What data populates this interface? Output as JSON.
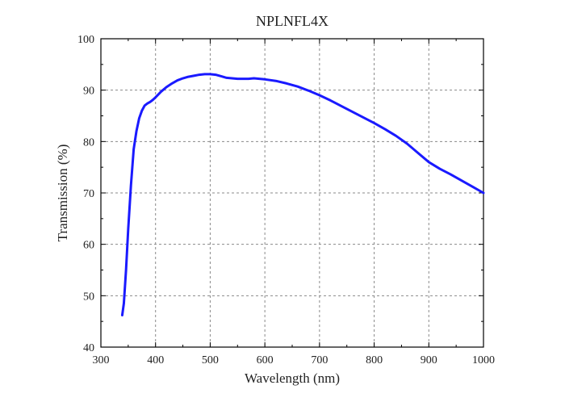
{
  "chart_data": {
    "type": "line",
    "title": "NPLNFL4X",
    "xlabel": "Wavelength (nm)",
    "ylabel": "Transmission (%)",
    "xlim": [
      300,
      1000
    ],
    "ylim": [
      40,
      100
    ],
    "xticks": [
      300,
      400,
      500,
      600,
      700,
      800,
      900,
      1000
    ],
    "yticks": [
      40,
      50,
      60,
      70,
      80,
      90,
      100
    ],
    "minor_ticks": true,
    "grid": true,
    "line_color": "#1a1aff",
    "series": [
      {
        "x": [
          339,
          342,
          346,
          350,
          355,
          360,
          365,
          370,
          375,
          380,
          385,
          390,
          395,
          400,
          410,
          420,
          430,
          440,
          450,
          460,
          470,
          480,
          490,
          500,
          510,
          520,
          530,
          540,
          550,
          560,
          570,
          580,
          590,
          600,
          620,
          640,
          660,
          680,
          700,
          720,
          740,
          760,
          780,
          800,
          820,
          840,
          860,
          880,
          900,
          920,
          940,
          960,
          980,
          1000
        ],
        "y": [
          46.2,
          48.5,
          55,
          63,
          71.5,
          78.5,
          82,
          84.5,
          86,
          87,
          87.4,
          87.7,
          88.1,
          88.6,
          89.7,
          90.6,
          91.3,
          91.9,
          92.3,
          92.6,
          92.8,
          93,
          93.1,
          93.1,
          93,
          92.7,
          92.4,
          92.3,
          92.2,
          92.2,
          92.2,
          92.3,
          92.2,
          92.1,
          91.8,
          91.3,
          90.7,
          89.9,
          89,
          88,
          86.9,
          85.8,
          84.7,
          83.6,
          82.4,
          81.1,
          79.6,
          77.8,
          76,
          74.7,
          73.6,
          72.4,
          71.2,
          70
        ]
      }
    ]
  }
}
